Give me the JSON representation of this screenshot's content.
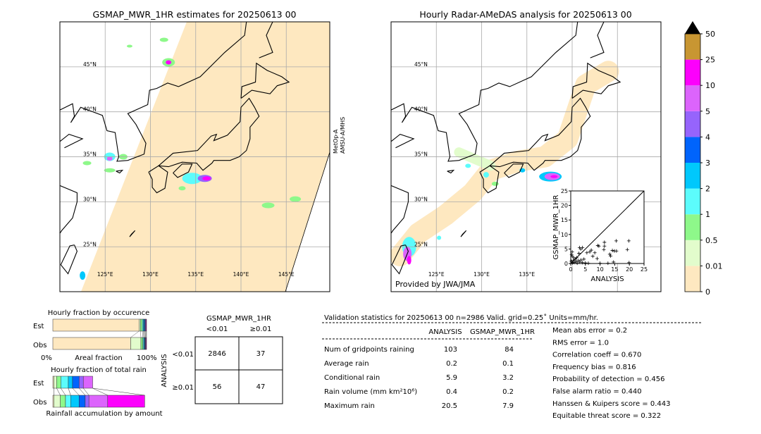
{
  "left_map": {
    "title": "GSMAP_MWR_1HR estimates for 20250613 00",
    "sensor_label": [
      "MetOp-A",
      "AMSU-A/MHS"
    ]
  },
  "right_map": {
    "title": "Hourly Radar-AMeDAS analysis for 20250613 00",
    "credit": "Provided by JWA/JMA"
  },
  "lat_labels": [
    "45°N",
    "40°N",
    "35°N",
    "30°N",
    "25°N"
  ],
  "lon_labels": [
    "125°E",
    "130°E",
    "135°E",
    "140°E",
    "145°E"
  ],
  "colorbar": {
    "ticks": [
      "0",
      "0.01",
      "0.5",
      "1",
      "2",
      "3",
      "4",
      "5",
      "10",
      "25",
      "50"
    ],
    "colors": [
      "#fee8c0",
      "#e2fccc",
      "#8ef88a",
      "#5cfcfc",
      "#00c8fc",
      "#0064fc",
      "#9664fc",
      "#dc64fc",
      "#fc00fc",
      "#c89632"
    ],
    "over_color": "#000000"
  },
  "occurrence": {
    "title": "Hourly fraction by occurence",
    "est_label": "Est",
    "obs_label": "Obs",
    "xmin_label": "0%",
    "xlabel": "Areal fraction",
    "xmax_label": "100%",
    "est_fractions": [
      0.92,
      0.015,
      0.02,
      0.01,
      0.01,
      0.008,
      0.006,
      0.005,
      0.006
    ],
    "obs_fractions": [
      0.83,
      0.11,
      0.02,
      0.01,
      0.008,
      0.007,
      0.005,
      0.005,
      0.005
    ]
  },
  "total_rain": {
    "title": "Hourly fraction of total rain",
    "est_label": "Est",
    "obs_label": "Obs",
    "xlabel": "Rainfall accumulation by amount",
    "est_fractions": [
      0.01,
      0.03,
      0.045,
      0.08,
      0.045,
      0.07,
      0.045,
      0.1,
      0
    ],
    "obs_fractions": [
      0.01,
      0.07,
      0.055,
      0.055,
      0.09,
      0.065,
      0.04,
      0.2,
      0.395
    ]
  },
  "contingency": {
    "title": "GSMAP_MWR_1HR",
    "col_labels": [
      "<0.01",
      "≥0.01"
    ],
    "row_axis": "ANALYSIS",
    "row_labels": [
      "<0.01",
      "≥0.01"
    ],
    "cells": [
      [
        "2846",
        "37"
      ],
      [
        "56",
        "47"
      ]
    ]
  },
  "stats": {
    "header": "Validation statistics for 20250613 00  n=2986 Valid. grid=0.25˚ Units=mm/hr.",
    "col_analysis": "ANALYSIS",
    "col_gsmap": "GSMAP_MWR_1HR",
    "rows": [
      {
        "label": "Num of gridpoints raining",
        "analysis": "103",
        "gsmap": "84"
      },
      {
        "label": "Average rain",
        "analysis": "0.2",
        "gsmap": "0.1"
      },
      {
        "label": "Conditional rain",
        "analysis": "5.9",
        "gsmap": "3.2"
      },
      {
        "label": "Rain volume (mm km²10⁶)",
        "analysis": "0.4",
        "gsmap": "0.2"
      },
      {
        "label": "Maximum rain",
        "analysis": "20.5",
        "gsmap": "7.9"
      }
    ],
    "scores": [
      "Mean abs error =    0.2",
      "RMS error =    1.0",
      "Correlation coeff =  0.670",
      "Frequency bias =  0.816",
      "Probability of detection =  0.456",
      "False alarm ratio =  0.440",
      "Hanssen & Kuipers score =  0.443",
      "Equitable threat score =  0.322"
    ]
  },
  "chart_data": {
    "type": "scatter",
    "xlabel": "ANALYSIS",
    "ylabel": "GSMAP_MWR_1HR",
    "xlim": [
      0,
      25
    ],
    "ylim": [
      0,
      25
    ],
    "xticks": [
      "0",
      "5",
      "10",
      "15",
      "20",
      "25"
    ],
    "yticks": [
      "0",
      "5",
      "10",
      "15",
      "20",
      "25"
    ],
    "points": [
      [
        15.5,
        7.8
      ],
      [
        19.8,
        7.8
      ],
      [
        11.5,
        7.3
      ],
      [
        11.5,
        6
      ],
      [
        9.2,
        6.2
      ],
      [
        9.6,
        6
      ],
      [
        3,
        5.5
      ],
      [
        4,
        5.5
      ],
      [
        3.4,
        5
      ],
      [
        7,
        4.6
      ],
      [
        11.3,
        4.8
      ],
      [
        6.5,
        4
      ],
      [
        5.5,
        3.7
      ],
      [
        8.2,
        3.7
      ],
      [
        14.2,
        4.5
      ],
      [
        14.9,
        4.3
      ],
      [
        15.6,
        4.3
      ],
      [
        19.3,
        4.8
      ],
      [
        13.3,
        3.2
      ],
      [
        13.6,
        2.6
      ],
      [
        7.5,
        2.5
      ],
      [
        9,
        1.7
      ],
      [
        2,
        2
      ],
      [
        1.5,
        1.5
      ],
      [
        0.5,
        4
      ],
      [
        0.3,
        3
      ],
      [
        0.5,
        2.5
      ],
      [
        1,
        2
      ],
      [
        0.8,
        1
      ],
      [
        2.5,
        1
      ],
      [
        3,
        0.5
      ],
      [
        4,
        0.3
      ],
      [
        5,
        0.2
      ],
      [
        6,
        0.1
      ],
      [
        12.7,
        0.1
      ],
      [
        14.6,
        0.5
      ],
      [
        19.9,
        0.3
      ],
      [
        10,
        0.1
      ],
      [
        1.2,
        0.4
      ],
      [
        0.2,
        0.8
      ],
      [
        0.6,
        0.2
      ],
      [
        2.2,
        0.1
      ],
      [
        3.5,
        1.2
      ],
      [
        4.5,
        1.5
      ],
      [
        2.8,
        3.5
      ],
      [
        1.8,
        0.6
      ]
    ],
    "diagonal": true
  }
}
